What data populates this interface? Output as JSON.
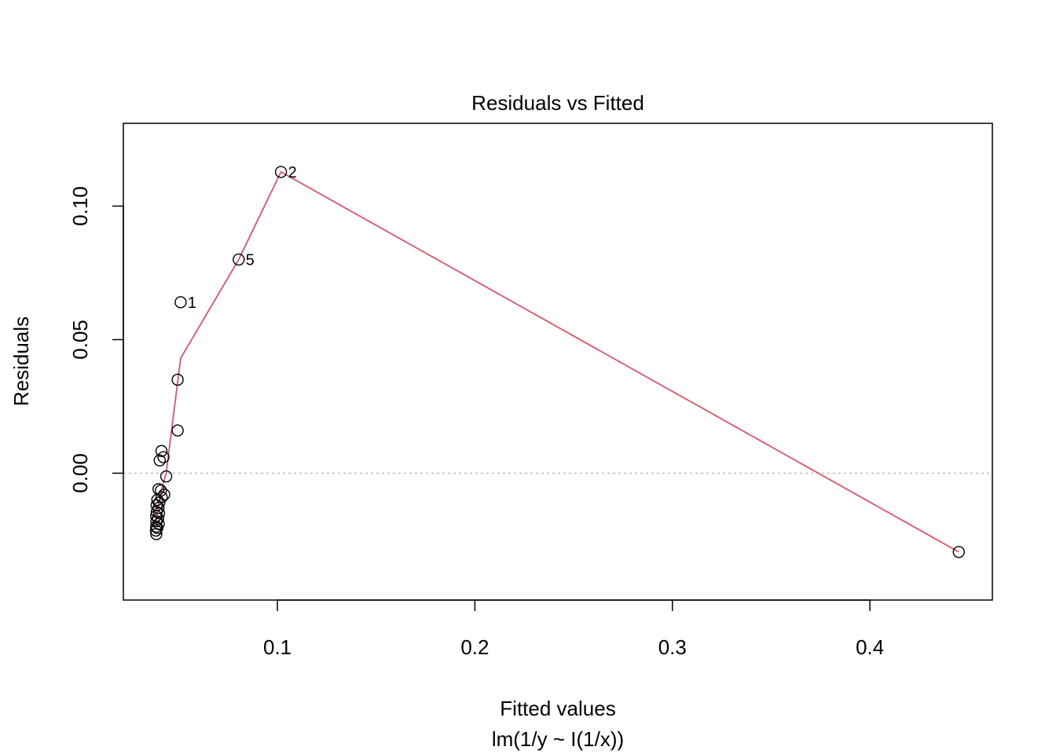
{
  "chart_data": {
    "type": "scatter",
    "title": "Residuals vs Fitted",
    "xlabel": "Fitted values",
    "subtitle": "lm(1/y ~ I(1/x))",
    "ylabel": "Residuals",
    "xlim": [
      0.022,
      0.462
    ],
    "ylim": [
      -0.0475,
      0.131
    ],
    "x_ticks": [
      0.1,
      0.2,
      0.3,
      0.4
    ],
    "x_tick_labels": [
      "0.1",
      "0.2",
      "0.3",
      "0.4"
    ],
    "y_ticks": [
      0.0,
      0.05,
      0.1
    ],
    "y_tick_labels": [
      "0.00",
      "0.05",
      "0.10"
    ],
    "reference_line": {
      "y": 0,
      "style": "dotted",
      "color": "#bebebe"
    },
    "points": [
      {
        "x": 0.1018,
        "y": 0.1128,
        "label": "2"
      },
      {
        "x": 0.0804,
        "y": 0.08,
        "label": "5"
      },
      {
        "x": 0.051,
        "y": 0.064,
        "label": "1"
      },
      {
        "x": 0.0495,
        "y": 0.035
      },
      {
        "x": 0.0495,
        "y": 0.016
      },
      {
        "x": 0.0413,
        "y": 0.0083
      },
      {
        "x": 0.0423,
        "y": 0.006
      },
      {
        "x": 0.0404,
        "y": 0.0048
      },
      {
        "x": 0.0437,
        "y": -0.0012
      },
      {
        "x": 0.0398,
        "y": -0.006
      },
      {
        "x": 0.041,
        "y": -0.0065
      },
      {
        "x": 0.0427,
        "y": -0.008
      },
      {
        "x": 0.0414,
        "y": -0.009
      },
      {
        "x": 0.0392,
        "y": -0.01
      },
      {
        "x": 0.0402,
        "y": -0.011
      },
      {
        "x": 0.0388,
        "y": -0.012
      },
      {
        "x": 0.0398,
        "y": -0.013
      },
      {
        "x": 0.0389,
        "y": -0.0145
      },
      {
        "x": 0.0401,
        "y": -0.015
      },
      {
        "x": 0.0386,
        "y": -0.016
      },
      {
        "x": 0.0396,
        "y": -0.017
      },
      {
        "x": 0.0387,
        "y": -0.018
      },
      {
        "x": 0.0399,
        "y": -0.019
      },
      {
        "x": 0.0386,
        "y": -0.02
      },
      {
        "x": 0.0392,
        "y": -0.0205
      },
      {
        "x": 0.0385,
        "y": -0.0215
      },
      {
        "x": 0.0387,
        "y": -0.0228
      },
      {
        "x": 0.445,
        "y": -0.0295
      }
    ],
    "smoother": {
      "color": "#df536b",
      "x": [
        0.0386,
        0.0395,
        0.041,
        0.0437,
        0.051,
        0.0804,
        0.1018,
        0.445
      ],
      "y": [
        -0.018,
        -0.013,
        -0.007,
        0.0,
        0.043,
        0.08,
        0.1128,
        -0.0295
      ]
    }
  }
}
